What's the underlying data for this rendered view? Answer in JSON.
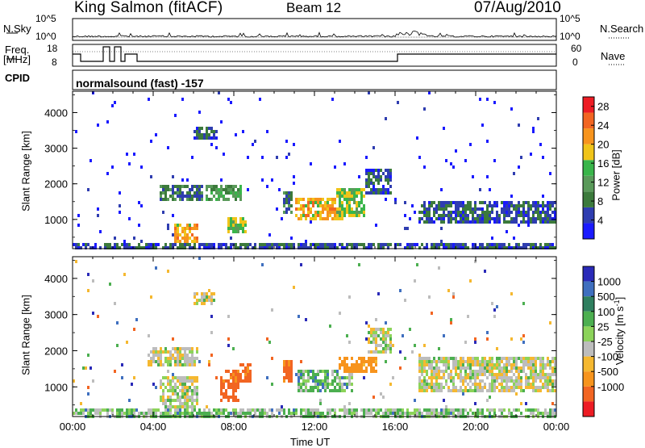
{
  "header": {
    "station": "King Salmon (fitACF)",
    "beam": "Beam 12",
    "date": "07/Aug/2010"
  },
  "strip_labels": {
    "nsky": "N.Sky",
    "nsearch": "N.Search",
    "freq": "Freq.",
    "freq_unit": "[MHz]",
    "nave": "Nave",
    "cpid": "CPID",
    "cpid_text": "normalsound (fast) -157"
  },
  "colors": {
    "power": [
      "#1a1aff",
      "#2f3db0",
      "#3c7a3c",
      "#5a9a5a",
      "#39b54a",
      "#f0c419",
      "#f7941d",
      "#f26522",
      "#ed1c24"
    ],
    "velocity": [
      "#2a2ab8",
      "#3f6fbf",
      "#2f7f5f",
      "#4caf50",
      "#8cd35a",
      "#bdbdbd",
      "#f5b830",
      "#f7941d",
      "#f26522",
      "#ed1c24"
    ]
  },
  "chart_data": [
    {
      "type": "heatmap",
      "name": "power",
      "title": "",
      "xlabel": "Time UT",
      "ylabel": "Slant Range [km]",
      "x_ticks": [
        "00:00",
        "04:00",
        "08:00",
        "12:00",
        "16:00",
        "20:00",
        "00:00"
      ],
      "x_range_hours": [
        0,
        24
      ],
      "y_ticks": [
        1000,
        2000,
        3000,
        4000
      ],
      "y_range_km": [
        180,
        4600
      ],
      "colorbar": {
        "label": "Power [dB]",
        "ticks": [
          4,
          8,
          12,
          16,
          20,
          24,
          28
        ],
        "range": [
          0,
          30
        ]
      },
      "regions": [
        {
          "t": [
            4.2,
            6.4
          ],
          "r": [
            1550,
            2050
          ],
          "value": 8
        },
        {
          "t": [
            5.0,
            6.2
          ],
          "r": [
            400,
            900
          ],
          "value": 20
        },
        {
          "t": [
            6.6,
            8.3
          ],
          "r": [
            1550,
            2050
          ],
          "value": 12
        },
        {
          "t": [
            7.6,
            8.6
          ],
          "r": [
            700,
            1100
          ],
          "value": 16
        },
        {
          "t": [
            10.4,
            10.8
          ],
          "r": [
            1200,
            1800
          ],
          "value": 8
        },
        {
          "t": [
            11.0,
            13.4
          ],
          "r": [
            1000,
            1650
          ],
          "value": 20
        },
        {
          "t": [
            13.0,
            14.4
          ],
          "r": [
            1100,
            1900
          ],
          "value": 16
        },
        {
          "t": [
            14.5,
            15.8
          ],
          "r": [
            1700,
            2500
          ],
          "value": 6
        },
        {
          "t": [
            17.1,
            24.0
          ],
          "r": [
            900,
            1550
          ],
          "value": 6
        },
        {
          "t": [
            6.0,
            7.0
          ],
          "r": [
            3300,
            3650
          ],
          "value": 6
        },
        {
          "t": [
            0.0,
            24.0
          ],
          "r": [
            200,
            400
          ],
          "value": 6
        }
      ]
    },
    {
      "type": "heatmap",
      "name": "velocity",
      "title": "",
      "xlabel": "Time UT",
      "ylabel": "Slant Range [km]",
      "x_ticks": [
        "00:00",
        "04:00",
        "08:00",
        "12:00",
        "16:00",
        "20:00",
        "00:00"
      ],
      "x_range_hours": [
        0,
        24
      ],
      "y_ticks": [
        1000,
        2000,
        3000,
        4000
      ],
      "y_range_km": [
        180,
        4600
      ],
      "colorbar": {
        "label": "Velocity [m s-1]",
        "ticks": [
          "1000",
          "500",
          "100",
          "25",
          "-25",
          "-100",
          "-500",
          "-1000"
        ]
      },
      "regions": [
        {
          "t": [
            3.6,
            6.2
          ],
          "r": [
            1600,
            2100
          ],
          "value": 0
        },
        {
          "t": [
            4.2,
            6.2
          ],
          "r": [
            400,
            1300
          ],
          "value": 0
        },
        {
          "t": [
            7.2,
            8.2
          ],
          "r": [
            600,
            1500
          ],
          "value": -300
        },
        {
          "t": [
            8.2,
            8.8
          ],
          "r": [
            1200,
            1700
          ],
          "value": -300
        },
        {
          "t": [
            10.4,
            10.8
          ],
          "r": [
            1200,
            1800
          ],
          "value": -300
        },
        {
          "t": [
            11.1,
            13.9
          ],
          "r": [
            900,
            1550
          ],
          "value": 60
        },
        {
          "t": [
            13.2,
            15.0
          ],
          "r": [
            1400,
            1900
          ],
          "value": -150
        },
        {
          "t": [
            14.6,
            15.8
          ],
          "r": [
            2000,
            2700
          ],
          "value": 0
        },
        {
          "t": [
            17.1,
            24.0
          ],
          "r": [
            900,
            1900
          ],
          "value": 0
        },
        {
          "t": [
            6.0,
            7.0
          ],
          "r": [
            3300,
            3650
          ],
          "value": 0
        },
        {
          "t": [
            0.0,
            24.0
          ],
          "r": [
            200,
            450
          ],
          "value": 50
        }
      ]
    }
  ]
}
